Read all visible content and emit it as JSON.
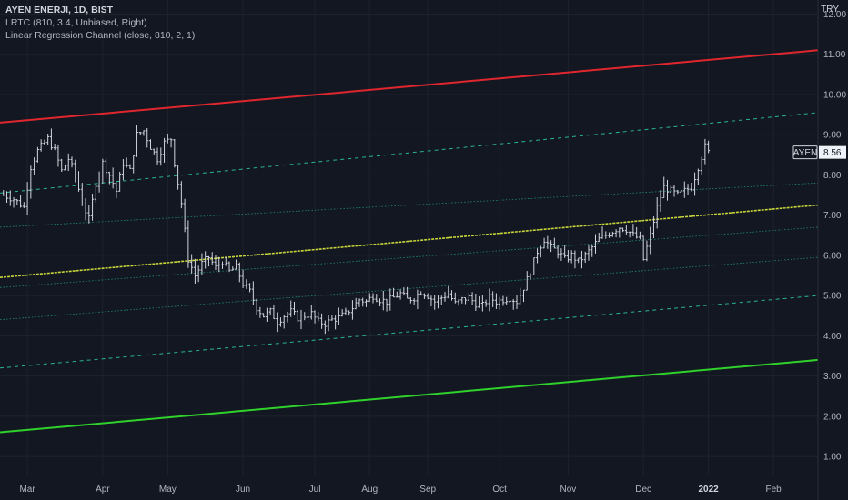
{
  "legend": {
    "title": "AYEN ENERJI, 1D, BIST",
    "indicator1": "LRTC (810, 3.4, Unbiased, Right)",
    "indicator2": "Linear Regression Channel (close, 810, 2, 1)"
  },
  "currency": "TRY",
  "colors": {
    "background": "#131722",
    "grid": "#1e222d",
    "candle": "#d1d4dc",
    "upper_band": "#e0262e",
    "lower_band": "#2fd12b",
    "mid_line": "#c8d63a",
    "dashed_channel": "#2bb39a",
    "dotted_channel": "#1f8a7b"
  },
  "chart_data": {
    "type": "ohlc",
    "symbol_label": "AYEN",
    "last_price": "8.56",
    "y_ticks": [
      "12.00",
      "11.00",
      "10.00",
      "9.00",
      "8.00",
      "7.00",
      "6.00",
      "5.00",
      "4.00",
      "3.00",
      "2.00",
      "1.00"
    ],
    "y_tick_values": [
      12,
      11,
      10,
      9,
      8,
      7,
      6,
      5,
      4,
      3,
      2,
      1
    ],
    "ylim": [
      0.55,
      12.35
    ],
    "x_ticks": [
      "Mar",
      "Apr",
      "May",
      "Jun",
      "Jul",
      "Aug",
      "Sep",
      "Oct",
      "Nov",
      "Dec",
      "2022",
      "Feb"
    ],
    "x_tick_bold": [
      false,
      false,
      false,
      false,
      false,
      false,
      false,
      false,
      false,
      false,
      true,
      false
    ],
    "x_tick_index": [
      7,
      29,
      48,
      70,
      91,
      107,
      124,
      145,
      165,
      187,
      206,
      225
    ],
    "x_range": [
      -1,
      238
    ],
    "regression_lines": [
      {
        "name": "upper",
        "style": "solid-thick",
        "color": "#e0262e",
        "start": 9.3,
        "end": 11.1
      },
      {
        "name": "upper-dashed",
        "style": "dashed",
        "color": "#2bb39a",
        "start": 7.55,
        "end": 9.55
      },
      {
        "name": "dotted-1",
        "style": "dotted",
        "color": "#1f8a7b",
        "start": 6.7,
        "end": 7.8
      },
      {
        "name": "middle",
        "style": "solid-yellow",
        "color": "#c8d63a",
        "start": 5.45,
        "end": 7.25
      },
      {
        "name": "dotted-2",
        "style": "dotted",
        "color": "#1f8a7b",
        "start": 5.2,
        "end": 6.7
      },
      {
        "name": "dotted-3",
        "style": "dotted",
        "color": "#1f8a7b",
        "start": 4.4,
        "end": 5.95
      },
      {
        "name": "lower-dashed",
        "style": "dashed",
        "color": "#2bb39a",
        "start": 3.2,
        "end": 5.0
      },
      {
        "name": "lower",
        "style": "solid-thick",
        "color": "#2fd12b",
        "start": 1.6,
        "end": 3.4
      }
    ],
    "regression_end_index": 238,
    "close_path": [
      [
        0,
        7.5
      ],
      [
        3,
        7.4
      ],
      [
        6,
        7.2
      ],
      [
        8,
        8.2
      ],
      [
        10,
        8.6
      ],
      [
        13,
        8.9
      ],
      [
        15,
        8.6
      ],
      [
        17,
        8.1
      ],
      [
        19,
        8.4
      ],
      [
        21,
        8.0
      ],
      [
        23,
        7.3
      ],
      [
        25,
        6.9
      ],
      [
        27,
        7.8
      ],
      [
        29,
        8.3
      ],
      [
        31,
        8.0
      ],
      [
        33,
        7.6
      ],
      [
        35,
        8.3
      ],
      [
        37,
        8.1
      ],
      [
        39,
        9.0
      ],
      [
        41,
        9.1
      ],
      [
        43,
        8.7
      ],
      [
        45,
        8.4
      ],
      [
        47,
        8.8
      ],
      [
        49,
        8.9
      ],
      [
        50,
        8.3
      ],
      [
        52,
        7.3
      ],
      [
        53,
        6.6
      ],
      [
        54,
        5.9
      ],
      [
        56,
        5.5
      ],
      [
        58,
        5.8
      ],
      [
        60,
        5.95
      ],
      [
        62,
        5.7
      ],
      [
        64,
        5.85
      ],
      [
        66,
        5.6
      ],
      [
        68,
        5.7
      ],
      [
        70,
        5.3
      ],
      [
        72,
        5.1
      ],
      [
        74,
        4.7
      ],
      [
        76,
        4.5
      ],
      [
        78,
        4.6
      ],
      [
        80,
        4.35
      ],
      [
        82,
        4.5
      ],
      [
        84,
        4.6
      ],
      [
        86,
        4.45
      ],
      [
        88,
        4.5
      ],
      [
        90,
        4.55
      ],
      [
        92,
        4.35
      ],
      [
        94,
        4.3
      ],
      [
        96,
        4.4
      ],
      [
        98,
        4.45
      ],
      [
        100,
        4.55
      ],
      [
        102,
        4.7
      ],
      [
        104,
        4.9
      ],
      [
        106,
        4.85
      ],
      [
        108,
        5.0
      ],
      [
        110,
        4.9
      ],
      [
        112,
        4.85
      ],
      [
        114,
        4.95
      ],
      [
        116,
        5.05
      ],
      [
        118,
        4.9
      ],
      [
        120,
        4.95
      ],
      [
        122,
        5.1
      ],
      [
        124,
        5.0
      ],
      [
        126,
        4.85
      ],
      [
        128,
        4.95
      ],
      [
        130,
        5.05
      ],
      [
        132,
        4.8
      ],
      [
        134,
        4.9
      ],
      [
        136,
        4.95
      ],
      [
        138,
        4.8
      ],
      [
        140,
        4.75
      ],
      [
        142,
        4.95
      ],
      [
        144,
        4.85
      ],
      [
        146,
        4.9
      ],
      [
        148,
        4.95
      ],
      [
        150,
        4.85
      ],
      [
        152,
        5.2
      ],
      [
        154,
        5.6
      ],
      [
        156,
        6.1
      ],
      [
        158,
        6.4
      ],
      [
        160,
        6.2
      ],
      [
        162,
        6.1
      ],
      [
        164,
        5.9
      ],
      [
        166,
        6.0
      ],
      [
        168,
        5.85
      ],
      [
        170,
        6.0
      ],
      [
        172,
        6.2
      ],
      [
        174,
        6.4
      ],
      [
        176,
        6.5
      ],
      [
        178,
        6.6
      ],
      [
        180,
        6.7
      ],
      [
        182,
        6.65
      ],
      [
        184,
        6.5
      ],
      [
        186,
        6.4
      ],
      [
        187,
        5.9
      ],
      [
        189,
        6.5
      ],
      [
        191,
        7.2
      ],
      [
        193,
        7.7
      ],
      [
        195,
        7.6
      ],
      [
        197,
        7.5
      ],
      [
        199,
        7.6
      ],
      [
        201,
        7.7
      ],
      [
        203,
        8.2
      ],
      [
        205,
        8.7
      ],
      [
        206,
        8.56
      ]
    ]
  }
}
